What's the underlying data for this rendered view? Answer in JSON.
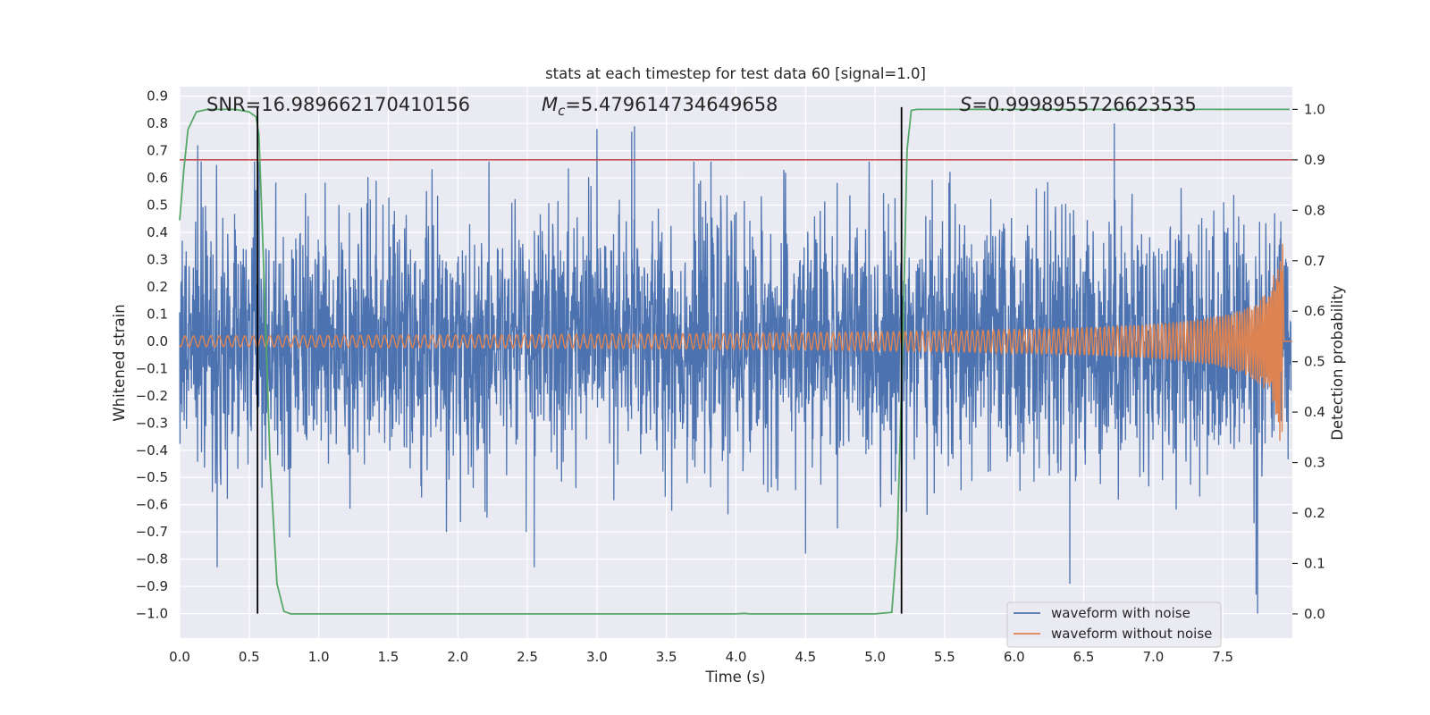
{
  "chart_data": {
    "type": "line",
    "title": "stats at each timestep for test data 60 [signal=1.0]",
    "xlabel": "Time (s)",
    "ylabel": "Whitened strain",
    "y2label": "Detection probability",
    "xlim": [
      0.0,
      8.0
    ],
    "ylim": [
      -1.09,
      0.935
    ],
    "y2lim": [
      -0.048,
      1.045
    ],
    "xticks": [
      0.0,
      0.5,
      1.0,
      1.5,
      2.0,
      2.5,
      3.0,
      3.5,
      4.0,
      4.5,
      5.0,
      5.5,
      6.0,
      6.5,
      7.0,
      7.5
    ],
    "xtick_labels": [
      "0.0",
      "0.5",
      "1.0",
      "1.5",
      "2.0",
      "2.5",
      "3.0",
      "3.5",
      "4.0",
      "4.5",
      "5.0",
      "5.5",
      "6.0",
      "6.5",
      "7.0",
      "7.5"
    ],
    "yticks": [
      0.9,
      0.8,
      0.7,
      0.6,
      0.5,
      0.4,
      0.3,
      0.2,
      0.1,
      0.0,
      -0.1,
      -0.2,
      -0.3,
      -0.4,
      -0.5,
      -0.6,
      -0.7,
      -0.8,
      -0.9,
      -1.0
    ],
    "ytick_labels": [
      "0.9",
      "0.8",
      "0.7",
      "0.6",
      "0.5",
      "0.4",
      "0.3",
      "0.2",
      "0.1",
      "0.0",
      "−0.1",
      "−0.2",
      "−0.3",
      "−0.4",
      "−0.5",
      "−0.6",
      "−0.7",
      "−0.8",
      "−0.9",
      "−1.0"
    ],
    "y2ticks": [
      1.0,
      0.9,
      0.8,
      0.7,
      0.6,
      0.5,
      0.4,
      0.3,
      0.2,
      0.1,
      0.0
    ],
    "y2tick_labels": [
      "1.0",
      "0.9",
      "0.8",
      "0.7",
      "0.6",
      "0.5",
      "0.4",
      "0.3",
      "0.2",
      "0.1",
      "0.0"
    ],
    "annotations": {
      "snr": "SNR=16.989662170410156",
      "mc_symbol": "M",
      "mc_subscript": "c",
      "mc_value": "=5.479614734649658",
      "s_symbol": "S",
      "s_value": "=0.9998955726623535"
    },
    "threshold": {
      "axis": "right",
      "value": 0.9,
      "color": "#c44e52"
    },
    "vertical_lines": [
      {
        "x": 0.56,
        "ymin": -1.0,
        "ymax": 0.86,
        "color": "#000000"
      },
      {
        "x": 5.19,
        "ymin": -1.0,
        "ymax": 0.86,
        "color": "#000000"
      }
    ],
    "series": [
      {
        "name": "waveform with noise",
        "color": "#4c72b0",
        "description": "dense whitened noise, typical peaks about +/-0.5, extremes +0.81 / -1.0",
        "typical_amplitude": 0.5,
        "max": 0.81,
        "min": -1.0
      },
      {
        "name": "waveform without noise",
        "color": "#dd8452",
        "description": "chirp signal, amplitude grows from 0.02 to 0.37 near t=7.93 then ends",
        "amp_start": 0.02,
        "amp_peak": 0.37,
        "t_end": 7.93
      },
      {
        "name": "detection probability",
        "axis": "right",
        "color": "#55a868",
        "x": [
          0.0,
          0.03,
          0.06,
          0.12,
          0.2,
          0.3,
          0.4,
          0.5,
          0.55,
          0.57,
          0.6,
          0.65,
          0.7,
          0.75,
          0.8,
          1.0,
          2.0,
          3.0,
          4.0,
          4.06,
          4.1,
          5.0,
          5.12,
          5.16,
          5.2,
          5.23,
          5.26,
          5.3,
          6.0,
          7.0,
          7.98
        ],
        "y": [
          0.78,
          0.88,
          0.96,
          0.995,
          1.0,
          1.0,
          1.0,
          0.995,
          0.985,
          0.95,
          0.72,
          0.3,
          0.06,
          0.005,
          0.0,
          0.0,
          0.0,
          0.0,
          0.0,
          0.001,
          0.0,
          0.0,
          0.003,
          0.15,
          0.55,
          0.92,
          0.998,
          1.0,
          1.0,
          1.0,
          1.0
        ]
      }
    ],
    "legend": {
      "position": "lower-right",
      "entries": [
        {
          "label": "waveform with noise",
          "color": "#4c72b0"
        },
        {
          "label": "waveform without noise",
          "color": "#dd8452"
        }
      ]
    },
    "style": {
      "background": "#eaeaf2",
      "grid": true,
      "grid_color": "#ffffff"
    }
  }
}
